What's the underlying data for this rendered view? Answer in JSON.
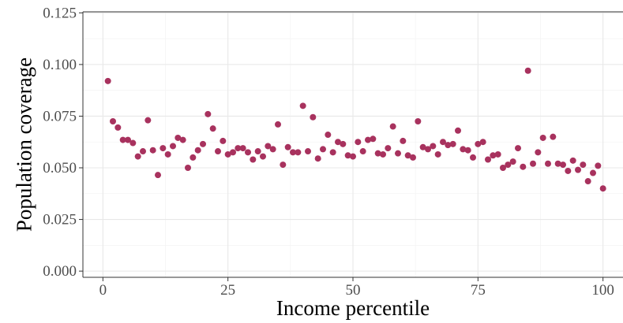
{
  "chart_data": {
    "type": "scatter",
    "xlabel": "Income percentile",
    "ylabel": "Population coverage",
    "xlim": [
      -4,
      104
    ],
    "ylim": [
      -0.003,
      0.1255
    ],
    "x_ticks": [
      0,
      25,
      50,
      75,
      100
    ],
    "x_tick_labels": [
      "0",
      "25",
      "50",
      "75",
      "100"
    ],
    "y_ticks": [
      0,
      0.025,
      0.05,
      0.075,
      0.1,
      0.125
    ],
    "y_tick_labels": [
      "0.000",
      "0.025",
      "0.050",
      "0.075",
      "0.100",
      "0.125"
    ],
    "grid": true,
    "legend": "none",
    "point_color": "#A8325E",
    "series": [
      {
        "x": [
          1,
          2,
          3,
          4,
          5,
          6,
          7,
          8,
          9,
          10,
          11,
          12,
          13,
          14,
          15,
          16,
          17,
          18,
          19,
          20,
          21,
          22,
          23,
          24,
          25,
          26,
          27,
          28,
          29,
          30,
          31,
          32,
          33,
          34,
          35,
          36,
          37,
          38,
          39,
          40,
          41,
          42,
          43,
          44,
          45,
          46,
          47,
          48,
          49,
          50,
          51,
          52,
          53,
          54,
          55,
          56,
          57,
          58,
          59,
          60,
          61,
          62,
          63,
          64,
          65,
          66,
          67,
          68,
          69,
          70,
          71,
          72,
          73,
          74,
          75,
          76,
          77,
          78,
          79,
          80,
          81,
          82,
          83,
          84,
          85,
          86,
          87,
          88,
          89,
          90,
          91,
          92,
          93,
          94,
          95,
          96,
          97,
          98,
          99,
          100
        ],
        "values": [
          0.092,
          0.0725,
          0.0695,
          0.0635,
          0.0635,
          0.062,
          0.0555,
          0.058,
          0.073,
          0.0585,
          0.0465,
          0.0595,
          0.0565,
          0.0605,
          0.0645,
          0.0635,
          0.05,
          0.055,
          0.0585,
          0.0615,
          0.076,
          0.069,
          0.058,
          0.063,
          0.0565,
          0.0575,
          0.0595,
          0.0595,
          0.0575,
          0.054,
          0.058,
          0.0555,
          0.0605,
          0.059,
          0.071,
          0.0515,
          0.06,
          0.0575,
          0.0575,
          0.08,
          0.058,
          0.0745,
          0.0545,
          0.059,
          0.066,
          0.0575,
          0.0625,
          0.0615,
          0.056,
          0.0555,
          0.0625,
          0.058,
          0.0635,
          0.064,
          0.057,
          0.0565,
          0.0595,
          0.07,
          0.057,
          0.063,
          0.056,
          0.055,
          0.0725,
          0.06,
          0.059,
          0.0605,
          0.0565,
          0.0625,
          0.061,
          0.0615,
          0.068,
          0.059,
          0.0585,
          0.055,
          0.0615,
          0.0625,
          0.054,
          0.056,
          0.0565,
          0.05,
          0.0515,
          0.053,
          0.0595,
          0.0505,
          0.097,
          0.052,
          0.0575,
          0.0645,
          0.052,
          0.065,
          0.052,
          0.0515,
          0.0485,
          0.0535,
          0.049,
          0.0515,
          0.0435,
          0.0475,
          0.051,
          0.04
        ]
      }
    ]
  }
}
